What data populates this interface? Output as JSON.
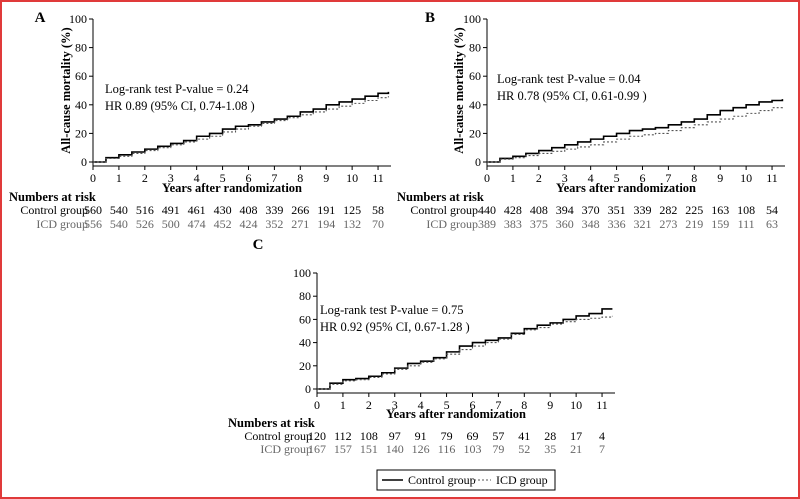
{
  "colors": {
    "frame": "#e03a3a",
    "control": "#000000",
    "icd": "#555555",
    "icd_risk_text": "#666666"
  },
  "legend": {
    "control": "Control group",
    "icd": "ICD group"
  },
  "chart_data": [
    {
      "type": "line",
      "panel_label": "A",
      "xlabel": "Years after randomization",
      "ylabel": "All-cause mortality (%)",
      "xlim": [
        0,
        11.5
      ],
      "ylim": [
        0,
        100
      ],
      "xticks": [
        0,
        1,
        2,
        3,
        4,
        5,
        6,
        7,
        8,
        9,
        10,
        11
      ],
      "yticks": [
        0,
        20,
        40,
        60,
        80,
        100
      ],
      "annotation": [
        "Log-rank test P-value = 0.24",
        "HR 0.89 (95% CI, 0.74-1.08 )"
      ],
      "series": [
        {
          "name": "Control group",
          "x": [
            0,
            0.5,
            1,
            1.5,
            2,
            2.5,
            3,
            3.5,
            4,
            4.5,
            5,
            5.5,
            6,
            6.5,
            7,
            7.5,
            8,
            8.5,
            9,
            9.5,
            10,
            10.5,
            11,
            11.4
          ],
          "y": [
            0,
            3,
            5,
            7,
            9,
            11,
            13,
            15,
            18,
            20,
            23,
            25,
            26,
            28,
            30,
            32,
            35,
            37,
            40,
            42,
            44,
            46,
            48,
            49
          ]
        },
        {
          "name": "ICD group",
          "x": [
            0,
            0.5,
            1,
            1.5,
            2,
            2.5,
            3,
            3.5,
            4,
            4.5,
            5,
            5.5,
            6,
            6.5,
            7,
            7.5,
            8,
            8.5,
            9,
            9.5,
            10,
            10.5,
            11,
            11.4
          ],
          "y": [
            0,
            2.5,
            4,
            6,
            8,
            10,
            12,
            14,
            16,
            18,
            21,
            23,
            25,
            27,
            29,
            31,
            33,
            35,
            37,
            39,
            41,
            43,
            45,
            46
          ]
        }
      ],
      "risk_table": {
        "title": "Numbers at risk",
        "control_label": "Control group",
        "icd_label": "ICD group",
        "control": [
          "560",
          "540",
          "516",
          "491",
          "461",
          "430",
          "408",
          "339",
          "266",
          "191",
          "125",
          "58"
        ],
        "icd": [
          "556",
          "540",
          "526",
          "500",
          "474",
          "452",
          "424",
          "352",
          "271",
          "194",
          "132",
          "70"
        ]
      }
    },
    {
      "type": "line",
      "panel_label": "B",
      "xlabel": "Years after randomization",
      "ylabel": "All-cause mortality (%)",
      "xlim": [
        0,
        11.5
      ],
      "ylim": [
        0,
        100
      ],
      "xticks": [
        0,
        1,
        2,
        3,
        4,
        5,
        6,
        7,
        8,
        9,
        10,
        11
      ],
      "yticks": [
        0,
        20,
        40,
        60,
        80,
        100
      ],
      "annotation": [
        "Log-rank test P-value = 0.04",
        "HR 0.78 (95% CI, 0.61-0.99 )"
      ],
      "series": [
        {
          "name": "Control group",
          "x": [
            0,
            0.5,
            1,
            1.5,
            2,
            2.5,
            3,
            3.5,
            4,
            4.5,
            5,
            5.5,
            6,
            6.5,
            7,
            7.5,
            8,
            8.5,
            9,
            9.5,
            10,
            10.5,
            11,
            11.4
          ],
          "y": [
            0,
            2.5,
            4,
            6,
            8,
            10,
            12,
            14,
            16,
            18,
            20,
            22,
            23,
            24,
            26,
            28,
            30,
            33,
            36,
            38,
            40,
            42,
            43,
            44
          ]
        },
        {
          "name": "ICD group",
          "x": [
            0,
            0.5,
            1,
            1.5,
            2,
            2.5,
            3,
            3.5,
            4,
            4.5,
            5,
            5.5,
            6,
            6.5,
            7,
            7.5,
            8,
            8.5,
            9,
            9.5,
            10,
            10.5,
            11,
            11.4
          ],
          "y": [
            0,
            2,
            3,
            4.5,
            6,
            7.5,
            9,
            10.5,
            12,
            14,
            16,
            18,
            19,
            20,
            22,
            24,
            26,
            28,
            30,
            32,
            34,
            36,
            38,
            39
          ]
        }
      ],
      "risk_table": {
        "title": "Numbers at risk",
        "control_label": "Control group",
        "icd_label": "ICD group",
        "control": [
          "440",
          "428",
          "408",
          "394",
          "370",
          "351",
          "339",
          "282",
          "225",
          "163",
          "108",
          "54"
        ],
        "icd": [
          "389",
          "383",
          "375",
          "360",
          "348",
          "336",
          "321",
          "273",
          "219",
          "159",
          "111",
          "63"
        ]
      }
    },
    {
      "type": "line",
      "panel_label": "C",
      "xlabel": "Years after randomization",
      "ylabel": "",
      "xlim": [
        0,
        11.5
      ],
      "ylim": [
        0,
        100
      ],
      "xticks": [
        0,
        1,
        2,
        3,
        4,
        5,
        6,
        7,
        8,
        9,
        10,
        11
      ],
      "yticks": [
        0,
        20,
        40,
        60,
        80,
        100
      ],
      "annotation": [
        "Log-rank test P-value = 0.75",
        "HR 0.92 (95% CI, 0.67-1.28 )"
      ],
      "series": [
        {
          "name": "Control group",
          "x": [
            0,
            0.5,
            1,
            1.5,
            2,
            2.5,
            3,
            3.5,
            4,
            4.5,
            5,
            5.5,
            6,
            6.5,
            7,
            7.5,
            8,
            8.5,
            9,
            9.5,
            10,
            10.5,
            11,
            11.4
          ],
          "y": [
            0,
            5,
            8,
            9,
            11,
            14,
            18,
            22,
            24,
            27,
            32,
            37,
            40,
            42,
            44,
            48,
            52,
            55,
            57,
            60,
            63,
            65,
            69,
            69
          ]
        },
        {
          "name": "ICD group",
          "x": [
            0,
            0.5,
            1,
            1.5,
            2,
            2.5,
            3,
            3.5,
            4,
            4.5,
            5,
            5.5,
            6,
            6.5,
            7,
            7.5,
            8,
            8.5,
            9,
            9.5,
            10,
            10.5,
            11,
            11.4
          ],
          "y": [
            0,
            4,
            7,
            8,
            10,
            13,
            17,
            20,
            23,
            26,
            30,
            34,
            37,
            40,
            43,
            47,
            51,
            53,
            56,
            58,
            60,
            61,
            62,
            63
          ]
        }
      ],
      "risk_table": {
        "title": "Numbers at risk",
        "control_label": "Control group",
        "icd_label": "ICD group",
        "control": [
          "120",
          "112",
          "108",
          "97",
          "91",
          "79",
          "69",
          "57",
          "41",
          "28",
          "17",
          "4"
        ],
        "icd": [
          "167",
          "157",
          "151",
          "140",
          "126",
          "116",
          "103",
          "79",
          "52",
          "35",
          "21",
          "7"
        ]
      }
    }
  ]
}
